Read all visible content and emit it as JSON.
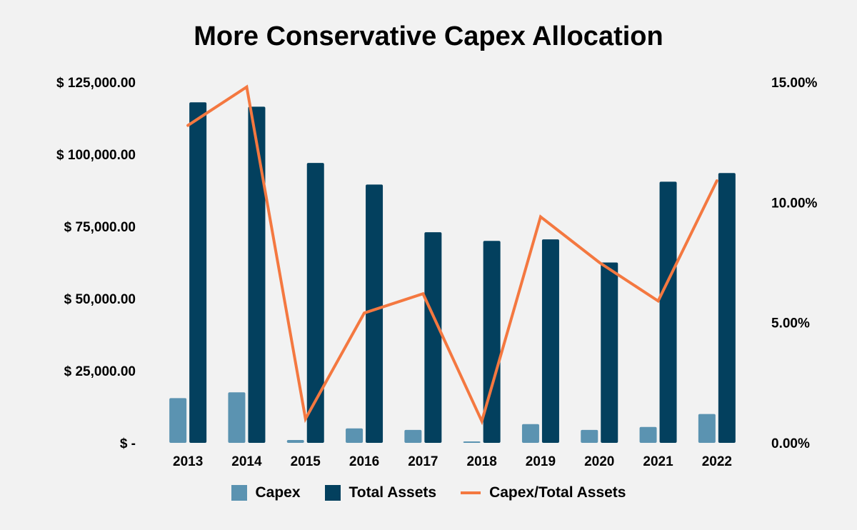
{
  "chart_data": {
    "type": "bar",
    "title": "More Conservative Capex Allocation",
    "categories": [
      "2013",
      "2014",
      "2015",
      "2016",
      "2017",
      "2018",
      "2019",
      "2020",
      "2021",
      "2022"
    ],
    "series": [
      {
        "name": "Capex",
        "kind": "bar",
        "axis": "left",
        "color": "#5b93b1",
        "values": [
          15500,
          17500,
          1000,
          5000,
          4500,
          500,
          6500,
          4500,
          5500,
          10000
        ]
      },
      {
        "name": "Total Assets",
        "kind": "bar",
        "axis": "left",
        "color": "#03405e",
        "values": [
          118000,
          116500,
          97000,
          89500,
          73000,
          70000,
          70500,
          62500,
          90500,
          93500
        ]
      },
      {
        "name": "Capex/Total Assets",
        "kind": "line",
        "axis": "right",
        "color": "#f47840",
        "values": [
          13.2,
          14.8,
          1.0,
          5.4,
          6.2,
          0.9,
          9.4,
          7.5,
          5.9,
          10.9
        ]
      }
    ],
    "y_left": {
      "min": 0,
      "max": 125000,
      "ticks": [
        0,
        25000,
        50000,
        75000,
        100000,
        125000
      ],
      "tick_labels": [
        "$ -",
        "$ 25,000.00",
        "$ 50,000.00",
        "$ 75,000.00",
        "$ 100,000.00",
        "$ 125,000.00"
      ]
    },
    "y_right": {
      "min": 0,
      "max": 15,
      "ticks": [
        0,
        5,
        10,
        15
      ],
      "tick_labels": [
        "0.00%",
        "5.00%",
        "10.00%",
        "15.00%"
      ]
    },
    "grid": false,
    "legend_position": "bottom"
  }
}
